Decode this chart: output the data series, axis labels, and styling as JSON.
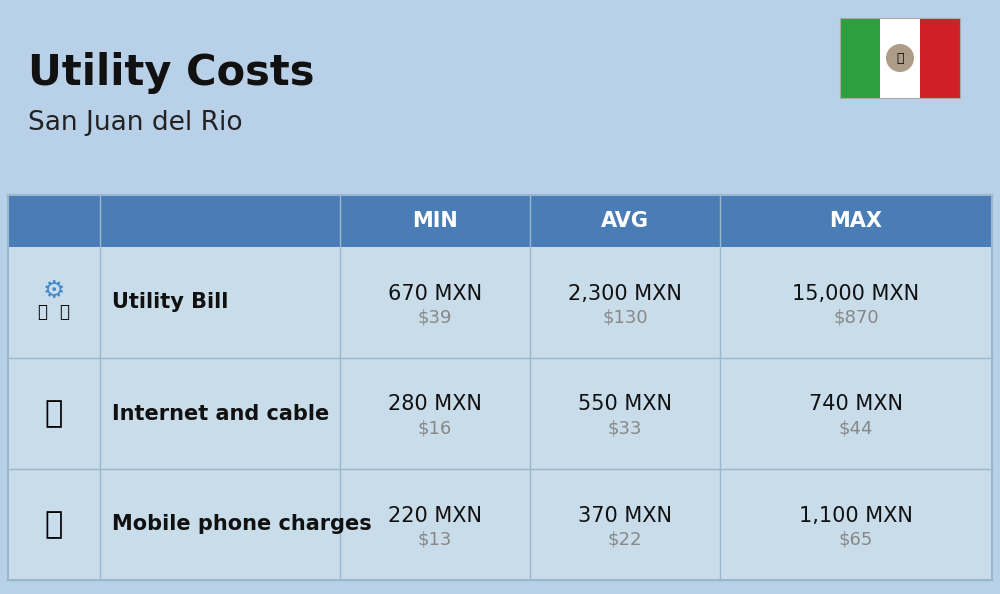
{
  "title": "Utility Costs",
  "subtitle": "San Juan del Rio",
  "background_color": "#b8d0e8",
  "table_header_color": "#4a7db5",
  "table_row_color": "#c8dcea",
  "table_header_text_color": "#ffffff",
  "divider_color": "#9ab8cc",
  "col_headers": [
    "MIN",
    "AVG",
    "MAX"
  ],
  "rows": [
    {
      "label": "Utility Bill",
      "min_mxn": "670 MXN",
      "min_usd": "$39",
      "avg_mxn": "2,300 MXN",
      "avg_usd": "$130",
      "max_mxn": "15,000 MXN",
      "max_usd": "$870"
    },
    {
      "label": "Internet and cable",
      "min_mxn": "280 MXN",
      "min_usd": "$16",
      "avg_mxn": "550 MXN",
      "avg_usd": "$33",
      "max_mxn": "740 MXN",
      "max_usd": "$44"
    },
    {
      "label": "Mobile phone charges",
      "min_mxn": "220 MXN",
      "min_usd": "$13",
      "avg_mxn": "370 MXN",
      "avg_usd": "$22",
      "max_mxn": "1,100 MXN",
      "max_usd": "$65"
    }
  ],
  "flag_green": "#2e9e3e",
  "flag_white": "#ffffff",
  "flag_red": "#cf2027",
  "title_fontsize": 30,
  "subtitle_fontsize": 19,
  "header_fontsize": 15,
  "label_fontsize": 15,
  "value_fontsize": 15,
  "usd_fontsize": 13
}
